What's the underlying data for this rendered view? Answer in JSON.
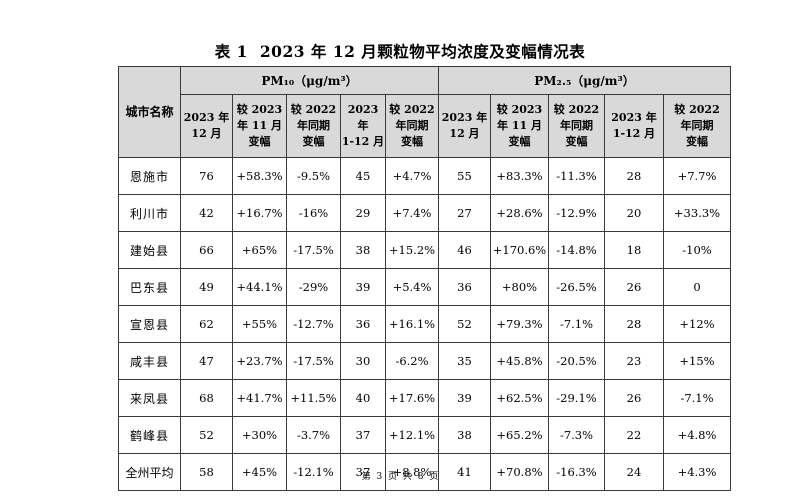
{
  "title": {
    "label": "表 1",
    "text": "2023 年 12 月颗粒物平均浓度及变幅情况表"
  },
  "table": {
    "city_header": "城市名称",
    "groups": [
      "PM₁₀（μg/m³）",
      "PM₂.₅（μg/m³）"
    ],
    "subheaders": [
      "2023 年 12 月",
      "较 2023 年 11 月 变幅",
      "较 2022 年同期 变幅",
      "2023 年 1-12 月",
      "较 2022 年同期 变幅"
    ],
    "rows": [
      [
        "恩施市",
        "76",
        "+58.3%",
        "-9.5%",
        "45",
        "+4.7%",
        "55",
        "+83.3%",
        "-11.3%",
        "28",
        "+7.7%"
      ],
      [
        "利川市",
        "42",
        "+16.7%",
        "-16%",
        "29",
        "+7.4%",
        "27",
        "+28.6%",
        "-12.9%",
        "20",
        "+33.3%"
      ],
      [
        "建始县",
        "66",
        "+65%",
        "-17.5%",
        "38",
        "+15.2%",
        "46",
        "+170.6%",
        "-14.8%",
        "18",
        "-10%"
      ],
      [
        "巴东县",
        "49",
        "+44.1%",
        "-29%",
        "39",
        "+5.4%",
        "36",
        "+80%",
        "-26.5%",
        "26",
        "0"
      ],
      [
        "宣恩县",
        "62",
        "+55%",
        "-12.7%",
        "36",
        "+16.1%",
        "52",
        "+79.3%",
        "-7.1%",
        "28",
        "+12%"
      ],
      [
        "咸丰县",
        "47",
        "+23.7%",
        "-17.5%",
        "30",
        "-6.2%",
        "35",
        "+45.8%",
        "-20.5%",
        "23",
        "+15%"
      ],
      [
        "来凤县",
        "68",
        "+41.7%",
        "+11.5%",
        "40",
        "+17.6%",
        "39",
        "+62.5%",
        "-29.1%",
        "26",
        "-7.1%"
      ],
      [
        "鹤峰县",
        "52",
        "+30%",
        "-3.7%",
        "37",
        "+12.1%",
        "38",
        "+65.2%",
        "-7.3%",
        "22",
        "+4.8%"
      ],
      [
        "全州平均",
        "58",
        "+45%",
        "-12.1%",
        "37",
        "+8.8%",
        "41",
        "+70.8%",
        "-16.3%",
        "24",
        "+4.3%"
      ]
    ]
  },
  "footer": "第 3 页 共 8 页"
}
